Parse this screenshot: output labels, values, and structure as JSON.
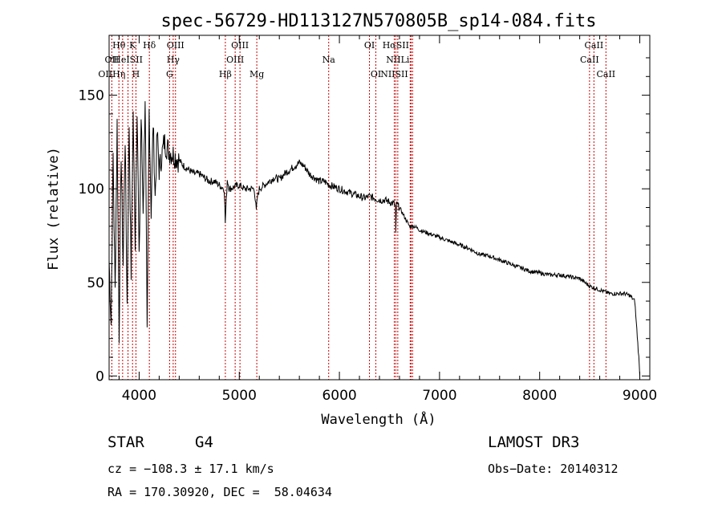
{
  "chart_data": {
    "type": "line",
    "title": "spec-56729-HD113127N570805B_sp14-084.fits",
    "xlabel": "Wavelength (Å)",
    "ylabel": "Flux (relative)",
    "xlim": [
      3700,
      9100
    ],
    "ylim": [
      -2,
      182
    ],
    "x_ticks": [
      4000,
      5000,
      6000,
      7000,
      8000,
      9000
    ],
    "y_ticks": [
      0,
      50,
      100,
      150
    ],
    "series": [
      {
        "name": "flux",
        "x": [
          3700,
          3720,
          3740,
          3760,
          3780,
          3800,
          3820,
          3840,
          3860,
          3880,
          3900,
          3920,
          3940,
          3960,
          3980,
          4000,
          4020,
          4040,
          4060,
          4080,
          4100,
          4120,
          4140,
          4160,
          4180,
          4200,
          4250,
          4300,
          4350,
          4400,
          4450,
          4500,
          4550,
          4600,
          4650,
          4700,
          4750,
          4800,
          4850,
          4860,
          4880,
          4900,
          4950,
          5000,
          5050,
          5100,
          5150,
          5170,
          5180,
          5200,
          5250,
          5300,
          5350,
          5400,
          5450,
          5500,
          5550,
          5600,
          5650,
          5700,
          5750,
          5800,
          5850,
          5900,
          5950,
          6000,
          6050,
          6100,
          6150,
          6200,
          6250,
          6300,
          6350,
          6400,
          6450,
          6500,
          6550,
          6560,
          6563,
          6570,
          6600,
          6650,
          6700,
          6750,
          6800,
          6850,
          6900,
          6950,
          7000,
          7100,
          7200,
          7300,
          7400,
          7500,
          7600,
          7700,
          7800,
          7900,
          8000,
          8100,
          8200,
          8300,
          8400,
          8450,
          8500,
          8550,
          8600,
          8650,
          8700,
          8750,
          8800,
          8850,
          8900,
          8950,
          8990,
          9000
        ],
        "values": [
          62,
          28,
          118,
          45,
          135,
          22,
          120,
          60,
          128,
          38,
          135,
          55,
          140,
          72,
          145,
          60,
          138,
          90,
          150,
          20,
          142,
          88,
          136,
          95,
          130,
          110,
          125,
          120,
          118,
          115,
          112,
          110,
          108,
          108,
          106,
          104,
          104,
          102,
          100,
          82,
          105,
          100,
          101,
          102,
          100,
          100,
          100,
          88,
          95,
          100,
          102,
          104,
          106,
          105,
          108,
          110,
          112,
          114,
          112,
          108,
          106,
          104,
          104,
          102,
          101,
          100,
          99,
          98,
          97,
          96,
          95,
          96,
          95,
          94,
          94,
          93,
          92,
          90,
          75,
          92,
          90,
          85,
          80,
          80,
          78,
          77,
          76,
          75,
          74,
          72,
          70,
          68,
          65,
          64,
          62,
          60,
          58,
          56,
          55,
          54,
          54,
          53,
          52,
          50,
          48,
          47,
          46,
          45,
          44,
          44,
          44,
          44,
          43,
          40,
          10,
          0
        ]
      }
    ],
    "emission_lines": [
      {
        "label": "Hθ",
        "x": 3798,
        "row": 1
      },
      {
        "label": "K",
        "x": 3934,
        "row": 1
      },
      {
        "label": "Hδ",
        "x": 4102,
        "row": 1
      },
      {
        "label": "OIII",
        "x": 4363,
        "row": 1
      },
      {
        "label": "OIII",
        "x": 5007,
        "row": 1
      },
      {
        "label": "OI",
        "x": 6300,
        "row": 1
      },
      {
        "label": "HαSII",
        "x": 6563,
        "row": 1
      },
      {
        "label": "CaII",
        "x": 8542,
        "row": 1
      },
      {
        "label": "OII",
        "x": 3727,
        "row": 2
      },
      {
        "label": "HeISII",
        "x": 3889,
        "row": 2
      },
      {
        "label": "Hγ",
        "x": 4340,
        "row": 2
      },
      {
        "label": "OIII",
        "x": 4959,
        "row": 2
      },
      {
        "label": "Na",
        "x": 5893,
        "row": 2
      },
      {
        "label": "NIILi",
        "x": 6583,
        "row": 2
      },
      {
        "label": "CaII",
        "x": 8498,
        "row": 2
      },
      {
        "label": "OIIHη",
        "x": 3727,
        "row": 3
      },
      {
        "label": "H",
        "x": 3968,
        "row": 3
      },
      {
        "label": "G",
        "x": 4304,
        "row": 3
      },
      {
        "label": "Hβ",
        "x": 4861,
        "row": 3
      },
      {
        "label": "Mg",
        "x": 5175,
        "row": 3
      },
      {
        "label": "OI",
        "x": 6364,
        "row": 3
      },
      {
        "label": "NIISII",
        "x": 6548,
        "row": 3
      },
      {
        "label": "CaII",
        "x": 8662,
        "row": 3
      }
    ],
    "line_markers": [
      3727,
      3798,
      3835,
      3889,
      3934,
      3968,
      4102,
      4304,
      4340,
      4363,
      4861,
      4959,
      5007,
      5175,
      5893,
      6300,
      6364,
      6548,
      6563,
      6583,
      6707,
      6716,
      6731,
      8498,
      8542,
      8662
    ],
    "marker_color": "#cc0000"
  },
  "info": {
    "class": "STAR",
    "subclass": "G4",
    "survey": "LAMOST DR3",
    "cz": "cz = −108.3 ± 17.1 km/s",
    "obs_date": "Obs−Date: 20140312",
    "coords": "RA = 170.30920, DEC =  58.04634"
  }
}
